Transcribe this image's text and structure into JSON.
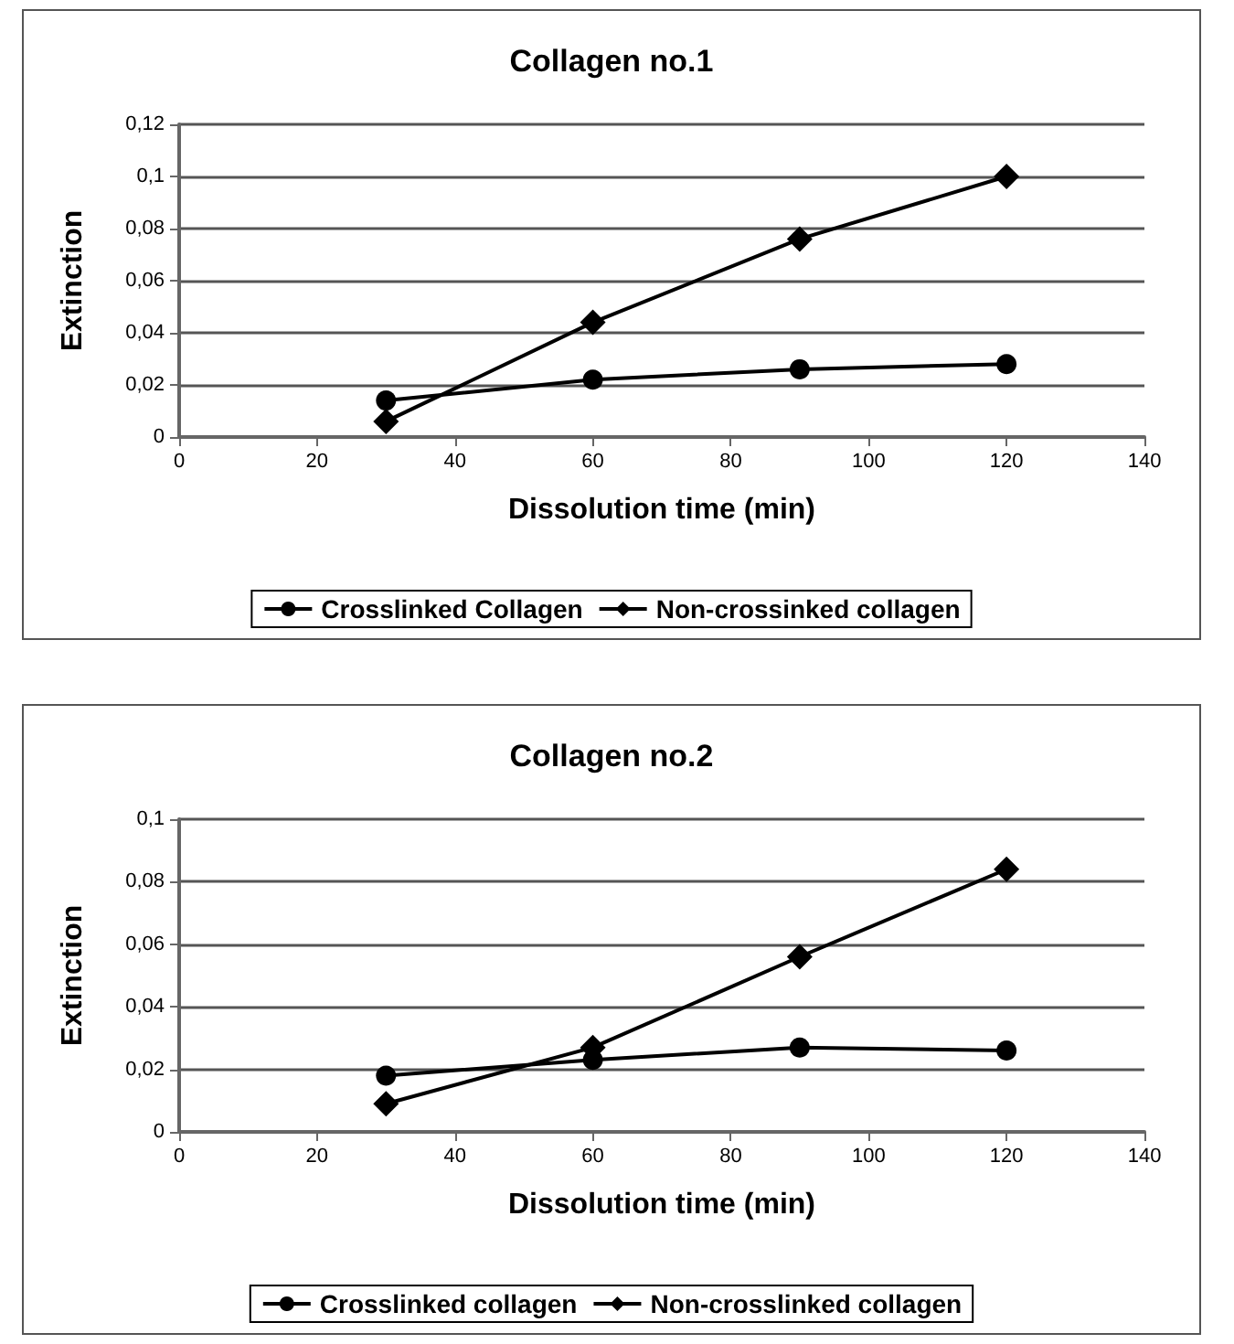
{
  "chart_data": [
    {
      "type": "line",
      "title": "Collagen no.1",
      "xlabel": "Dissolution time (min)",
      "ylabel": "Extinction",
      "x": [
        30,
        60,
        90,
        120
      ],
      "series": [
        {
          "name": "Crosslinked Collagen",
          "color": "#000000",
          "marker": "circle",
          "values": [
            0.014,
            0.022,
            0.026,
            0.028
          ]
        },
        {
          "name": "Non-crossinked collagen",
          "color": "#000000",
          "marker": "diamond",
          "values": [
            0.006,
            0.044,
            0.076,
            0.1
          ]
        }
      ],
      "xlim": [
        0,
        140
      ],
      "xticks": [
        0,
        20,
        40,
        60,
        80,
        100,
        120,
        140
      ],
      "ylim": [
        0,
        0.12
      ],
      "yticks": [
        0,
        {
          "value": 0.02,
          "label": "0,02"
        },
        {
          "value": 0.04,
          "label": "0,04"
        },
        {
          "value": 0.06,
          "label": "0,06"
        },
        {
          "value": 0.08,
          "label": "0,08"
        },
        {
          "value": 0.1,
          "label": "0,1"
        },
        {
          "value": 0.12,
          "label": "0,12"
        }
      ],
      "grid": "y",
      "legend": "bottom",
      "line_style": "solid"
    },
    {
      "type": "line",
      "title": "Collagen no.2",
      "xlabel": "Dissolution time (min)",
      "ylabel": "Extinction",
      "x": [
        30,
        60,
        90,
        120
      ],
      "series": [
        {
          "name": "Crosslinked collagen",
          "color": "#000000",
          "marker": "circle",
          "values": [
            0.018,
            0.023,
            0.027,
            0.026
          ]
        },
        {
          "name": "Non-crosslinked collagen",
          "color": "#000000",
          "marker": "diamond",
          "values": [
            0.009,
            0.027,
            0.056,
            0.084
          ]
        }
      ],
      "xlim": [
        0,
        140
      ],
      "xticks": [
        0,
        20,
        40,
        60,
        80,
        100,
        120,
        140
      ],
      "ylim": [
        0,
        0.1
      ],
      "yticks": [
        0,
        {
          "value": 0.02,
          "label": "0,02"
        },
        {
          "value": 0.04,
          "label": "0,04"
        },
        {
          "value": 0.06,
          "label": "0,06"
        },
        {
          "value": 0.08,
          "label": "0,08"
        },
        {
          "value": 0.1,
          "label": "0,1"
        }
      ],
      "grid": "y",
      "legend": "bottom",
      "line_style": "solid"
    }
  ]
}
